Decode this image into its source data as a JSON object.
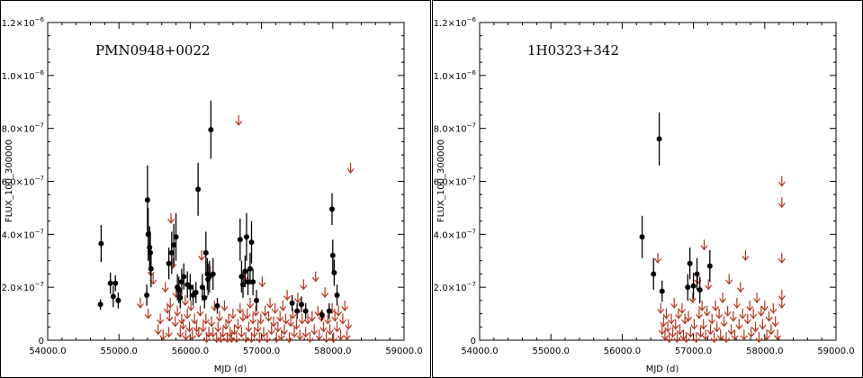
{
  "colors": {
    "detection": "#000000",
    "upper_limit": "#b5331a"
  },
  "chart_data": [
    {
      "type": "scatter",
      "source_name": "PMN0948+0022",
      "xlabel": "MJD (d)",
      "ylabel": "FLUX_100_300000",
      "xlim": [
        54000,
        59000
      ],
      "ylim": [
        0,
        1.2e-06
      ],
      "x_tick_labels": [
        "54000.0",
        "55000.0",
        "56000.0",
        "57000.0",
        "58000.0",
        "59000.0"
      ],
      "y_tick_labels": [
        {
          "mantissa": "0",
          "exp": ""
        },
        {
          "mantissa": "2.0×10",
          "exp": "−7"
        },
        {
          "mantissa": "4.0×10",
          "exp": "−7"
        },
        {
          "mantissa": "6.0×10",
          "exp": "−7"
        },
        {
          "mantissa": "8.0×10",
          "exp": "−7"
        },
        {
          "mantissa": "1.0×10",
          "exp": "−6"
        },
        {
          "mantissa": "1.2×10",
          "exp": "−6"
        }
      ],
      "detections": [
        [
          54740,
          1.35e-07,
          2e-08
        ],
        [
          54750,
          3.65e-07,
          7e-08
        ],
        [
          54880,
          2.15e-07,
          4e-08
        ],
        [
          54920,
          1.65e-07,
          4e-08
        ],
        [
          54950,
          2.15e-07,
          3e-08
        ],
        [
          54990,
          1.5e-07,
          3e-08
        ],
        [
          55390,
          1.7e-07,
          4e-08
        ],
        [
          55400,
          5.3e-07,
          1.3e-07
        ],
        [
          55410,
          4e-07,
          1e-07
        ],
        [
          55430,
          3.5e-07,
          8e-08
        ],
        [
          55440,
          3.3e-07,
          8e-08
        ],
        [
          55450,
          2.7e-07,
          7e-08
        ],
        [
          55700,
          2.9e-07,
          6e-08
        ],
        [
          55740,
          3.3e-07,
          8e-08
        ],
        [
          55770,
          3.6e-07,
          8e-08
        ],
        [
          55800,
          3.9e-07,
          9e-08
        ],
        [
          55820,
          2e-07,
          5e-08
        ],
        [
          55840,
          1.9e-07,
          5e-08
        ],
        [
          55860,
          1.6e-07,
          4e-08
        ],
        [
          55880,
          2.2e-07,
          5e-08
        ],
        [
          55910,
          2.4e-07,
          5e-08
        ],
        [
          55960,
          2.1e-07,
          5e-08
        ],
        [
          56000,
          2e-07,
          5e-08
        ],
        [
          56040,
          1.7e-07,
          4e-08
        ],
        [
          56080,
          1.8e-07,
          4e-08
        ],
        [
          56110,
          5.7e-07,
          1e-07
        ],
        [
          56170,
          2e-07,
          5e-08
        ],
        [
          56200,
          1.6e-07,
          4e-08
        ],
        [
          56220,
          3.3e-07,
          8e-08
        ],
        [
          56240,
          2.5e-07,
          6e-08
        ],
        [
          56250,
          2.3e-07,
          6e-08
        ],
        [
          56270,
          2.4e-07,
          6e-08
        ],
        [
          56290,
          7.95e-07,
          1.1e-07
        ],
        [
          56320,
          2.5e-07,
          6e-08
        ],
        [
          56380,
          1.3e-07,
          3e-08
        ],
        [
          56700,
          3.8e-07,
          8e-08
        ],
        [
          56720,
          2.4e-07,
          6e-08
        ],
        [
          56740,
          2.1e-07,
          5e-08
        ],
        [
          56770,
          2.6e-07,
          6e-08
        ],
        [
          56790,
          3.9e-07,
          9e-08
        ],
        [
          56810,
          2.2e-07,
          5e-08
        ],
        [
          56840,
          2.7e-07,
          6e-08
        ],
        [
          56860,
          3.7e-07,
          8e-08
        ],
        [
          56880,
          2.2e-07,
          5e-08
        ],
        [
          56930,
          1.5e-07,
          4e-08
        ],
        [
          57430,
          1.4e-07,
          3e-08
        ],
        [
          57500,
          1.1e-07,
          3e-08
        ],
        [
          57560,
          1.35e-07,
          3e-08
        ],
        [
          57620,
          1.1e-07,
          3e-08
        ],
        [
          57850,
          9.5e-08,
          2e-08
        ],
        [
          57950,
          1.1e-07,
          3e-08
        ],
        [
          57990,
          4.95e-07,
          6e-08
        ],
        [
          58000,
          3.2e-07,
          6e-08
        ],
        [
          58020,
          2.55e-07,
          5e-08
        ],
        [
          58060,
          1.7e-07,
          4e-08
        ]
      ],
      "upper_limits": [
        [
          55300,
          1.6e-07
        ],
        [
          55410,
          1.2e-07
        ],
        [
          55450,
          2.8e-07
        ],
        [
          55480,
          2.5e-07
        ],
        [
          55550,
          6e-08
        ],
        [
          55580,
          1e-07
        ],
        [
          55620,
          4e-08
        ],
        [
          55650,
          2.2e-07
        ],
        [
          55680,
          1.4e-07
        ],
        [
          55700,
          5e-08
        ],
        [
          55710,
          1.1e-07
        ],
        [
          55720,
          1.6e-07
        ],
        [
          55730,
          4.8e-07
        ],
        [
          55760,
          3.1e-07
        ],
        [
          55790,
          9e-08
        ],
        [
          55800,
          2e-07
        ],
        [
          55820,
          1.3e-07
        ],
        [
          55860,
          5e-08
        ],
        [
          55880,
          1e-07
        ],
        [
          55900,
          8e-08
        ],
        [
          55930,
          1.7e-07
        ],
        [
          55940,
          4e-08
        ],
        [
          55960,
          1.2e-07
        ],
        [
          55990,
          7e-08
        ],
        [
          56010,
          1.5e-07
        ],
        [
          56030,
          4e-08
        ],
        [
          56060,
          1e-07
        ],
        [
          56090,
          7e-08
        ],
        [
          56120,
          5e-08
        ],
        [
          56140,
          1.3e-07
        ],
        [
          56160,
          3.4e-07
        ],
        [
          56180,
          7e-08
        ],
        [
          56200,
          1.9e-07
        ],
        [
          56220,
          1e-07
        ],
        [
          56230,
          3e-08
        ],
        [
          56260,
          5e-08
        ],
        [
          56280,
          2.8e-07
        ],
        [
          56300,
          9e-08
        ],
        [
          56320,
          5e-08
        ],
        [
          56340,
          1.5e-07
        ],
        [
          56370,
          3e-08
        ],
        [
          56390,
          7e-08
        ],
        [
          56410,
          1.1e-07
        ],
        [
          56430,
          3e-08
        ],
        [
          56460,
          5e-08
        ],
        [
          56480,
          1.5e-07
        ],
        [
          56500,
          8e-08
        ],
        [
          56520,
          3e-08
        ],
        [
          56540,
          1e-07
        ],
        [
          56560,
          5e-08
        ],
        [
          56580,
          3e-08
        ],
        [
          56600,
          1.2e-07
        ],
        [
          56620,
          6e-08
        ],
        [
          56650,
          3e-08
        ],
        [
          56670,
          8e-08
        ],
        [
          56680,
          8.5e-07
        ],
        [
          56700,
          1.4e-07
        ],
        [
          56720,
          5e-08
        ],
        [
          56740,
          1.1e-07
        ],
        [
          56760,
          2.6e-07
        ],
        [
          56780,
          3e-08
        ],
        [
          56800,
          1.2e-07
        ],
        [
          56820,
          7e-08
        ],
        [
          56840,
          1.6e-07
        ],
        [
          56860,
          3e-08
        ],
        [
          56880,
          1e-07
        ],
        [
          56900,
          5e-08
        ],
        [
          56920,
          1.3e-07
        ],
        [
          56950,
          7e-08
        ],
        [
          56970,
          3e-08
        ],
        [
          56990,
          1e-07
        ],
        [
          57010,
          2.4e-07
        ],
        [
          57030,
          5e-08
        ],
        [
          57050,
          1.3e-07
        ],
        [
          57080,
          3e-08
        ],
        [
          57100,
          1.1e-07
        ],
        [
          57120,
          1.6e-07
        ],
        [
          57140,
          6e-08
        ],
        [
          57170,
          9e-08
        ],
        [
          57190,
          1.4e-07
        ],
        [
          57210,
          3e-08
        ],
        [
          57230,
          7e-08
        ],
        [
          57260,
          1.1e-07
        ],
        [
          57280,
          4e-08
        ],
        [
          57300,
          1.5e-07
        ],
        [
          57320,
          6e-08
        ],
        [
          57340,
          1e-07
        ],
        [
          57360,
          1.9e-07
        ],
        [
          57390,
          3e-08
        ],
        [
          57410,
          9e-08
        ],
        [
          57440,
          1.2e-07
        ],
        [
          57460,
          5e-08
        ],
        [
          57490,
          8e-08
        ],
        [
          57510,
          1.8e-07
        ],
        [
          57540,
          4e-08
        ],
        [
          57570,
          1e-07
        ],
        [
          57590,
          2.3e-07
        ],
        [
          57620,
          5e-08
        ],
        [
          57650,
          1e-07
        ],
        [
          57680,
          3e-08
        ],
        [
          57710,
          1.1e-07
        ],
        [
          57740,
          6e-08
        ],
        [
          57760,
          2.6e-07
        ],
        [
          57790,
          1.3e-07
        ],
        [
          57810,
          4e-08
        ],
        [
          57840,
          1.1e-07
        ],
        [
          57870,
          7e-08
        ],
        [
          57890,
          2e-07
        ],
        [
          57910,
          3e-08
        ],
        [
          57930,
          1e-07
        ],
        [
          57960,
          6e-08
        ],
        [
          57990,
          1.4e-07
        ],
        [
          58010,
          3e-08
        ],
        [
          58030,
          1.1e-07
        ],
        [
          58060,
          7e-08
        ],
        [
          58080,
          1.3e-07
        ],
        [
          58110,
          4e-08
        ],
        [
          58140,
          1e-07
        ],
        [
          58170,
          1.5e-07
        ],
        [
          58200,
          4e-08
        ],
        [
          58220,
          8e-08
        ],
        [
          58250,
          6.7e-07
        ]
      ]
    },
    {
      "type": "scatter",
      "source_name": "1H0323+342",
      "xlabel": "MJD (d)",
      "ylabel": "FLUX_100_300000",
      "xlim": [
        54000,
        59000
      ],
      "ylim": [
        0,
        1.2e-06
      ],
      "x_tick_labels": [
        "54000.0",
        "55000.0",
        "56000.0",
        "57000.0",
        "58000.0",
        "59000.0"
      ],
      "y_tick_labels": [
        {
          "mantissa": "0",
          "exp": ""
        },
        {
          "mantissa": "2.0×10",
          "exp": "−7"
        },
        {
          "mantissa": "4.0×10",
          "exp": "−7"
        },
        {
          "mantissa": "6.0×10",
          "exp": "−7"
        },
        {
          "mantissa": "8.0×10",
          "exp": "−7"
        },
        {
          "mantissa": "1.0×10",
          "exp": "−6"
        },
        {
          "mantissa": "1.2×10",
          "exp": "−6"
        }
      ],
      "detections": [
        [
          56280,
          3.9e-07,
          8e-08
        ],
        [
          56440,
          2.5e-07,
          6e-08
        ],
        [
          56520,
          7.6e-07,
          1e-07
        ],
        [
          56560,
          1.85e-07,
          4e-08
        ],
        [
          56920,
          2e-07,
          5e-08
        ],
        [
          56950,
          2.9e-07,
          6e-08
        ],
        [
          57000,
          2.05e-07,
          5e-08
        ],
        [
          57050,
          2.5e-07,
          6e-08
        ],
        [
          57090,
          1.9e-07,
          5e-08
        ],
        [
          57230,
          2.8e-07,
          6e-08
        ]
      ],
      "upper_limits": [
        [
          56500,
          3.3e-07
        ],
        [
          56540,
          1.4e-07
        ],
        [
          56560,
          6e-08
        ],
        [
          56580,
          9e-08
        ],
        [
          56600,
          4e-08
        ],
        [
          56620,
          1.2e-07
        ],
        [
          56640,
          7e-08
        ],
        [
          56660,
          3e-08
        ],
        [
          56690,
          1e-07
        ],
        [
          56710,
          5e-08
        ],
        [
          56730,
          1.6e-07
        ],
        [
          56750,
          8e-08
        ],
        [
          56770,
          3e-08
        ],
        [
          56790,
          1.2e-07
        ],
        [
          56810,
          6e-08
        ],
        [
          56840,
          1.4e-07
        ],
        [
          56860,
          4e-08
        ],
        [
          56880,
          1e-07
        ],
        [
          56900,
          3e-08
        ],
        [
          56930,
          1.1e-07
        ],
        [
          56960,
          5e-08
        ],
        [
          56990,
          1.8e-07
        ],
        [
          57010,
          8e-08
        ],
        [
          57040,
          3e-08
        ],
        [
          57060,
          2.5e-07
        ],
        [
          57080,
          1.2e-07
        ],
        [
          57100,
          5e-08
        ],
        [
          57120,
          1.5e-07
        ],
        [
          57140,
          8e-08
        ],
        [
          57150,
          3.8e-07
        ],
        [
          57170,
          4e-08
        ],
        [
          57190,
          1.3e-07
        ],
        [
          57210,
          2.3e-07
        ],
        [
          57240,
          6e-08
        ],
        [
          57260,
          1e-07
        ],
        [
          57290,
          3e-08
        ],
        [
          57310,
          1.5e-07
        ],
        [
          57330,
          7e-08
        ],
        [
          57360,
          1.2e-07
        ],
        [
          57380,
          4e-08
        ],
        [
          57410,
          1.8e-07
        ],
        [
          57430,
          9e-08
        ],
        [
          57460,
          3e-08
        ],
        [
          57480,
          1.3e-07
        ],
        [
          57500,
          2.5e-07
        ],
        [
          57530,
          6e-08
        ],
        [
          57560,
          1.1e-07
        ],
        [
          57580,
          4e-08
        ],
        [
          57610,
          1.6e-07
        ],
        [
          57640,
          8e-08
        ],
        [
          57660,
          2.2e-07
        ],
        [
          57690,
          1.2e-07
        ],
        [
          57710,
          4e-08
        ],
        [
          57730,
          3.4e-07
        ],
        [
          57760,
          1e-07
        ],
        [
          57790,
          1.5e-07
        ],
        [
          57810,
          5e-08
        ],
        [
          57840,
          1.2e-07
        ],
        [
          57870,
          7e-08
        ],
        [
          57890,
          1.8e-07
        ],
        [
          57920,
          3e-08
        ],
        [
          57950,
          1.3e-07
        ],
        [
          57970,
          8e-08
        ],
        [
          58000,
          1.5e-07
        ],
        [
          58030,
          4e-08
        ],
        [
          58060,
          1.1e-07
        ],
        [
          58090,
          6e-08
        ],
        [
          58120,
          1.4e-07
        ],
        [
          58150,
          9e-08
        ],
        [
          58180,
          4e-08
        ],
        [
          58240,
          6.2e-07
        ],
        [
          58240,
          5.4e-07
        ],
        [
          58240,
          3.3e-07
        ],
        [
          58240,
          1.9e-07
        ],
        [
          58240,
          1.6e-07
        ]
      ]
    }
  ]
}
